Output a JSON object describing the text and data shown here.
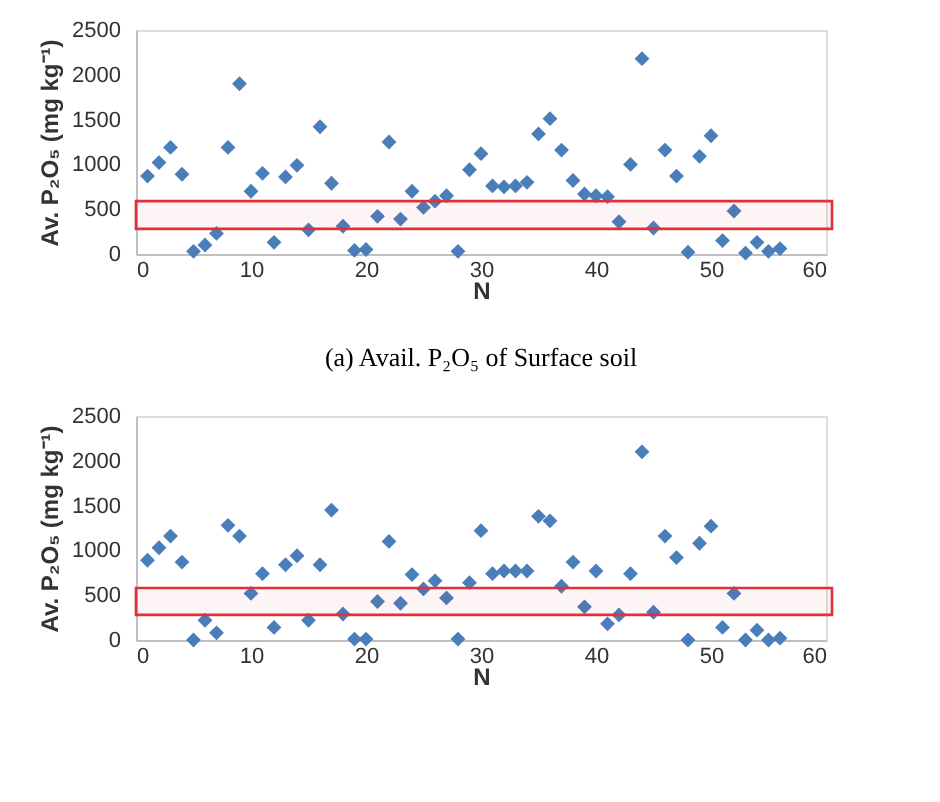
{
  "chart_data": [
    {
      "type": "scatter",
      "xlabel": "N",
      "ylabel": "Av. P₂O₅ (mg kg⁻¹)",
      "marker": "diamond",
      "grid": false,
      "xlim": [
        0,
        60
      ],
      "xticks": [
        0,
        10,
        20,
        30,
        40,
        50,
        60
      ],
      "ylim": [
        0,
        2500
      ],
      "yticks": [
        0,
        500,
        1000,
        1500,
        2000,
        2500
      ],
      "series": [
        {
          "color": "#4a7ebb",
          "x": [
            1,
            2,
            3,
            4,
            5,
            6,
            7,
            8,
            9,
            10,
            11,
            12,
            13,
            14,
            15,
            16,
            17,
            18,
            19,
            20,
            21,
            22,
            23,
            24,
            25,
            26,
            27,
            28,
            29,
            30,
            31,
            32,
            33,
            34,
            35,
            36,
            37,
            38,
            39,
            40,
            41,
            42,
            43,
            44,
            45,
            46,
            47,
            48,
            49,
            50,
            51,
            52,
            53,
            54,
            55,
            56
          ],
          "values": [
            870,
            1020,
            1190,
            890,
            30,
            100,
            230,
            1190,
            1900,
            700,
            900,
            130,
            860,
            990,
            270,
            1420,
            790,
            310,
            40,
            50,
            420,
            1250,
            390,
            700,
            520,
            590,
            650,
            30,
            940,
            1120,
            760,
            750,
            760,
            800,
            1340,
            1510,
            1160,
            820,
            670,
            650,
            640,
            360,
            1000,
            2180,
            290,
            1160,
            870,
            20,
            1090,
            1320,
            150,
            480,
            10,
            130,
            30,
            60
          ]
        }
      ],
      "bands": [
        {
          "axis": "y",
          "from": 280,
          "to": 590,
          "color": "#e0303a"
        }
      ],
      "annotations": [
        "(a) Avail. P₂O₅ of Surface soil"
      ]
    },
    {
      "type": "scatter",
      "xlabel": "N",
      "ylabel": "Av. P₂O₅ (mg kg⁻¹)",
      "marker": "diamond",
      "grid": false,
      "xlim": [
        0,
        60
      ],
      "xticks": [
        0,
        10,
        20,
        30,
        40,
        50,
        60
      ],
      "ylim": [
        0,
        2500
      ],
      "yticks": [
        0,
        500,
        1000,
        1500,
        2000,
        2500
      ],
      "series": [
        {
          "color": "#4a7ebb",
          "x": [
            1,
            2,
            3,
            4,
            5,
            6,
            7,
            8,
            9,
            10,
            11,
            12,
            13,
            14,
            15,
            16,
            17,
            18,
            19,
            20,
            21,
            22,
            23,
            24,
            25,
            26,
            27,
            28,
            29,
            30,
            31,
            32,
            33,
            34,
            35,
            36,
            37,
            38,
            39,
            40,
            41,
            42,
            43,
            44,
            45,
            46,
            47,
            48,
            49,
            50,
            51,
            52,
            53,
            54,
            55,
            56
          ],
          "values": [
            890,
            1030,
            1160,
            870,
            0,
            220,
            80,
            1280,
            1160,
            520,
            740,
            140,
            840,
            940,
            220,
            840,
            1450,
            290,
            10,
            10,
            430,
            1100,
            410,
            730,
            570,
            660,
            470,
            10,
            640,
            1220,
            740,
            770,
            770,
            770,
            1380,
            1330,
            600,
            870,
            370,
            770,
            180,
            280,
            740,
            2100,
            310,
            1160,
            920,
            0,
            1080,
            1270,
            140,
            520,
            0,
            110,
            0,
            20
          ]
        }
      ],
      "bands": [
        {
          "axis": "y",
          "from": 280,
          "to": 580,
          "color": "#e0303a"
        }
      ]
    }
  ]
}
